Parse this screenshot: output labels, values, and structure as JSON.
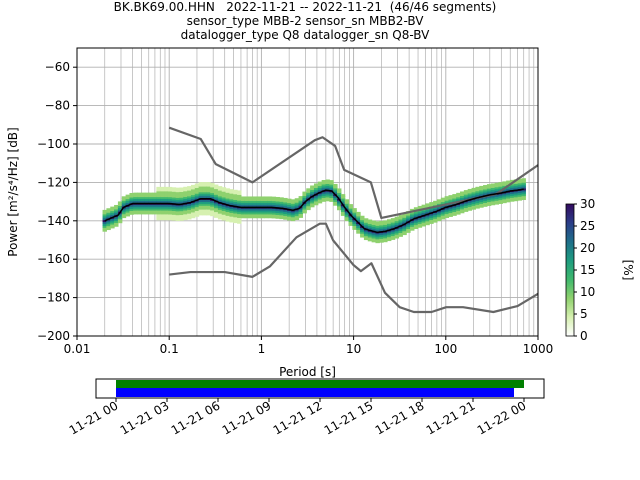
{
  "title": {
    "line1": "BK.BK69.00.HHN   2022-11-21 -- 2022-11-21  (46/46 segments)",
    "line2": "sensor_type MBB-2 sensor_sn MBB2-BV",
    "line3": "datalogger_type Q8 datalogger_sn Q8-BV"
  },
  "colors": {
    "median": "#000000",
    "noise_models": "#666666",
    "coverage_data": "#008000",
    "coverage_gaps_row": "#0000ff",
    "grid": "#b0b0b0"
  },
  "chart_data": [
    {
      "type": "line",
      "subtype": "probabilistic-psd",
      "xlabel": "Period [s]",
      "ylabel": "Power [m²/s⁴/Hz] [dB]",
      "xscale": "log",
      "xlim": [
        0.01,
        1000
      ],
      "ylim": [
        -200,
        -50
      ],
      "xticks": [
        {
          "value": 0.01,
          "label": "0.01"
        },
        {
          "value": 0.1,
          "label": "0.1"
        },
        {
          "value": 1,
          "label": "1"
        },
        {
          "value": 10,
          "label": "10"
        },
        {
          "value": 100,
          "label": "100"
        },
        {
          "value": 1000,
          "label": "1000"
        }
      ],
      "yticks": [
        -200,
        -180,
        -160,
        -140,
        -120,
        -100,
        -80,
        -60
      ],
      "grid": true,
      "series": [
        {
          "role": "noise-model-high",
          "x": [
            0.1,
            0.22,
            0.32,
            0.8,
            3.8,
            4.6,
            6.3,
            7.9,
            15.4,
            20,
            354,
            1000
          ],
          "y": [
            -91.5,
            -97.4,
            -110.5,
            -120,
            -98,
            -96.5,
            -101,
            -113.5,
            -120,
            -138.5,
            -126,
            -111
          ]
        },
        {
          "role": "noise-model-low",
          "x": [
            0.1,
            0.17,
            0.4,
            0.8,
            1.24,
            2.4,
            4.3,
            5.0,
            6.0,
            10,
            12,
            15.6,
            21.9,
            31.6,
            45,
            70,
            101,
            154,
            328,
            600,
            1000
          ],
          "y": [
            -168,
            -166.7,
            -166.7,
            -169.2,
            -163.7,
            -148.6,
            -141.5,
            -141.5,
            -150.2,
            -163.1,
            -166.2,
            -162.1,
            -177.5,
            -185,
            -187.5,
            -187.5,
            -185,
            -185,
            -187.5,
            -184.4,
            -178
          ]
        },
        {
          "role": "median",
          "x": [
            0.02,
            0.025,
            0.028,
            0.032,
            0.04,
            0.06,
            0.08,
            0.1,
            0.13,
            0.17,
            0.22,
            0.28,
            0.35,
            0.45,
            0.6,
            0.8,
            1.0,
            1.3,
            1.7,
            2.2,
            2.6,
            3.0,
            3.5,
            4.2,
            5.0,
            5.8,
            6.8,
            8.0,
            9.5,
            11,
            13,
            15,
            18,
            22,
            28,
            35,
            45,
            60,
            80,
            100,
            130,
            170,
            220,
            300,
            400,
            500,
            600,
            700
          ],
          "y": [
            -140,
            -138,
            -137,
            -133,
            -131,
            -131,
            -131,
            -131,
            -131.5,
            -130.5,
            -128.5,
            -128.5,
            -130.5,
            -132,
            -133,
            -133,
            -133,
            -133,
            -133.5,
            -134.5,
            -133.5,
            -130,
            -127.5,
            -125.5,
            -124,
            -124.5,
            -128,
            -133,
            -137.5,
            -140.5,
            -144,
            -145,
            -146,
            -145.5,
            -144,
            -142,
            -139,
            -137,
            -135,
            -133,
            -131.5,
            -129.5,
            -128,
            -126.5,
            -125.5,
            -124.5,
            -124,
            -123.5
          ]
        }
      ],
      "colorbar": {
        "label": "[%]",
        "min": 0,
        "max": 30,
        "ticks": [
          0,
          5,
          10,
          15,
          20,
          25,
          30
        ],
        "colormap": [
          "#ffffff",
          "#d6f0b0",
          "#8fd16e",
          "#3fb86d",
          "#1e9c80",
          "#1f6f8a",
          "#2b3d88",
          "#330a5e"
        ]
      }
    },
    {
      "type": "timeline",
      "role": "data-coverage",
      "xticks": [
        "11-21 00",
        "11-21 03",
        "11-21 06",
        "11-21 09",
        "11-21 12",
        "11-21 15",
        "11-21 18",
        "11-21 21",
        "11-22 00"
      ]
    }
  ]
}
